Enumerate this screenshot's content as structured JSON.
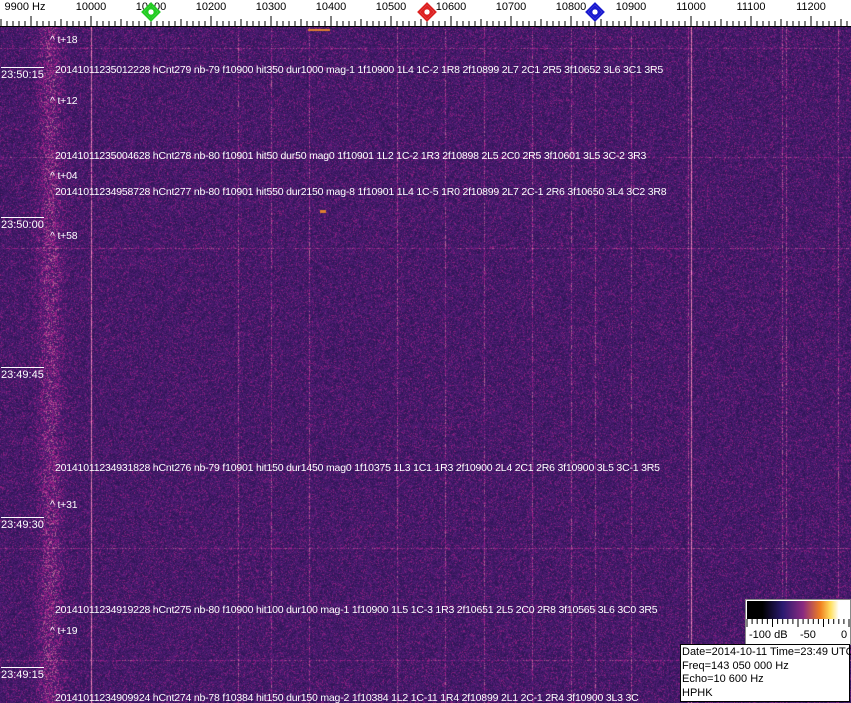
{
  "chart_data": {
    "type": "heatmap",
    "x_unit": "Hz",
    "x_ticks": [
      "9900 Hz",
      "10000",
      "10100",
      "10200",
      "10300",
      "10400",
      "10500",
      "10600",
      "10700",
      "10800",
      "10900",
      "11000",
      "11100",
      "11200"
    ],
    "x_range": [
      9850,
      11265
    ],
    "y_ticks": [
      "23:50:15",
      "23:50:00",
      "23:49:45",
      "23:49:30",
      "23:49:15"
    ],
    "markers": [
      {
        "color": "#22cc22",
        "freq": 10100
      },
      {
        "color": "#dd2222",
        "freq": 10560
      },
      {
        "color": "#1a1ad0",
        "freq": 10840
      }
    ],
    "colorbar": {
      "labels": [
        "-100 dB",
        "-50",
        "0"
      ]
    },
    "annotations": [
      {
        "kind": "offset",
        "text": "^ t+18"
      },
      {
        "kind": "event",
        "text": "20141011235012228 hCnt279 nb-79 f10900 hit350 dur1000 mag-1 1f10900 1L4 1C-2 1R8 2f10899 2L7 2C1 2R5 3f10652 3L6 3C1 3R5"
      },
      {
        "kind": "offset",
        "text": "^ t+12"
      },
      {
        "kind": "event",
        "text": "20141011235004628 hCnt278 nb-80 f10901 hit50 dur50 mag0 1f10901 1L2 1C-2 1R3 2f10898 2L5 2C0 2R5 3f10601 3L5 3C-2 3R3"
      },
      {
        "kind": "offset",
        "text": "^ t+04"
      },
      {
        "kind": "event",
        "text": "20141011234958728 hCnt277 nb-80 f10901 hit550 dur2150 mag-8 1f10901 1L4 1C-5 1R0 2f10899 2L7 2C-1 2R6 3f10650 3L4 3C2 3R8"
      },
      {
        "kind": "offset",
        "text": "^ t+58"
      },
      {
        "kind": "event",
        "text": "20141011234931828 hCnt276 nb-79 f10901 hit150 dur1450 mag0 1f10375 1L3 1C1 1R3 2f10900 2L4 2C1 2R6 3f10900 3L5 3C-1 3R5"
      },
      {
        "kind": "offset",
        "text": "^ t+31"
      },
      {
        "kind": "event",
        "text": "20141011234919228 hCnt275 nb-80 f10900 hit100 dur100 mag-1 1f10900 1L5 1C-3 1R3 2f10651 2L5 2C0 2R8 3f10565 3L6 3C0 3R5"
      },
      {
        "kind": "offset",
        "text": "^ t+19"
      },
      {
        "kind": "event",
        "text": "20141011234909924 hCnt274 nb-78 f10384 hit150 dur150 mag-2 1f10384 1L2 1C-11 1R4 2f10899 2L1 2C-1 2R4 3f10900 3L3 3C"
      }
    ]
  },
  "info": {
    "line1": "Date=2014-10-11 Time=23:49 UTC",
    "line2": "Freq=143 050 000 Hz",
    "line3": "Echo=10 600 Hz",
    "line4": "HPHK"
  }
}
